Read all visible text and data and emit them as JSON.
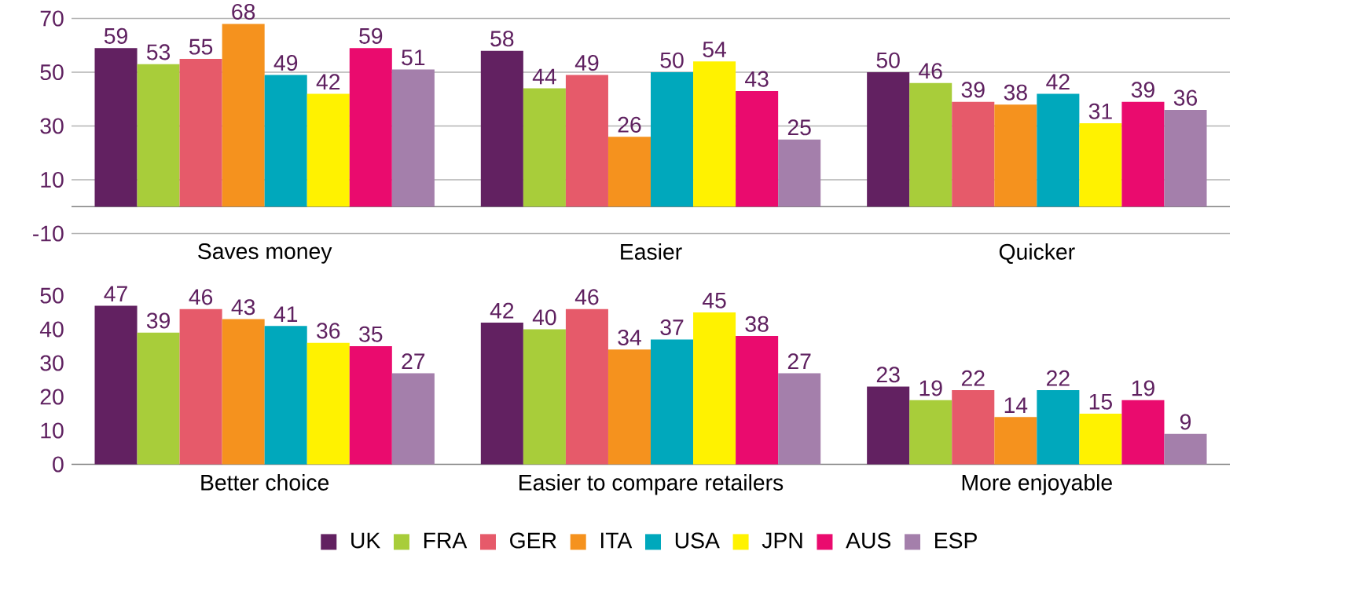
{
  "chart_data": [
    {
      "type": "bar",
      "categories": [
        "Saves money",
        "Easier",
        "Quicker"
      ],
      "ylim": [
        -10,
        70
      ],
      "yticks": [
        -10,
        10,
        30,
        50,
        70
      ],
      "grid": "y",
      "data_labels": true,
      "legend": false,
      "series": [
        {
          "color": "#622161",
          "values": [
            59,
            58,
            50
          ]
        },
        {
          "color": "#a8cd3a",
          "values": [
            53,
            44,
            46
          ]
        },
        {
          "color": "#e65a6a",
          "values": [
            55,
            49,
            39
          ]
        },
        {
          "color": "#f5921e",
          "values": [
            68,
            26,
            38
          ]
        },
        {
          "color": "#00a8bc",
          "values": [
            49,
            50,
            42
          ]
        },
        {
          "color": "#fff200",
          "values": [
            42,
            54,
            31
          ]
        },
        {
          "color": "#ea0b6e",
          "values": [
            59,
            43,
            39
          ]
        },
        {
          "color": "#a47fab",
          "values": [
            51,
            25,
            36
          ]
        }
      ]
    },
    {
      "type": "bar",
      "categories": [
        "Better choice",
        "Easier to compare retailers",
        "More enjoyable"
      ],
      "ylim": [
        0,
        50
      ],
      "yticks": [
        0,
        10,
        20,
        30,
        40,
        50
      ],
      "data_labels": true,
      "legend": "bottom",
      "series": [
        {
          "name": "UK",
          "color": "#622161",
          "values": [
            47,
            42,
            23
          ]
        },
        {
          "name": "FRA",
          "color": "#a8cd3a",
          "values": [
            39,
            40,
            19
          ]
        },
        {
          "name": "GER",
          "color": "#e65a6a",
          "values": [
            46,
            46,
            22
          ]
        },
        {
          "name": "ITA",
          "color": "#f5921e",
          "values": [
            43,
            34,
            14
          ]
        },
        {
          "name": "USA",
          "color": "#00a8bc",
          "values": [
            41,
            37,
            22
          ]
        },
        {
          "name": "JPN",
          "color": "#fff200",
          "values": [
            36,
            45,
            15
          ]
        },
        {
          "name": "AUS",
          "color": "#ea0b6e",
          "values": [
            35,
            38,
            19
          ]
        },
        {
          "name": "ESP",
          "color": "#a47fab",
          "values": [
            27,
            27,
            9
          ]
        }
      ]
    }
  ]
}
